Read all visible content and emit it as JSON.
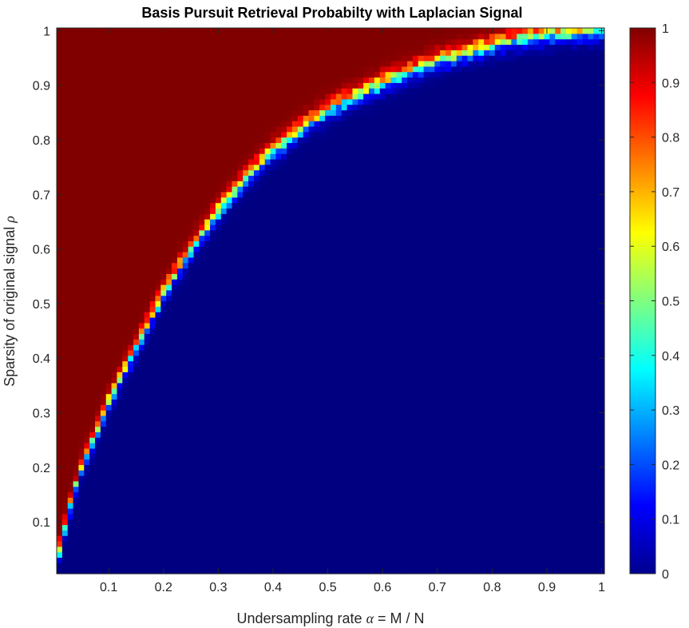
{
  "chart_data": {
    "type": "heatmap",
    "title": "Basis Pursuit Retrieval Probabilty with Laplacian Signal",
    "xlabel_text": "Undersampling rate ",
    "xlabel_symbol": "α",
    "xlabel_suffix": " = M / N",
    "ylabel_text": "Sparsity of original signal ",
    "ylabel_symbol": "ρ",
    "xlim": [
      0.005,
      1.005
    ],
    "ylim": [
      0.005,
      1.005
    ],
    "x_ticks": [
      0.1,
      0.2,
      0.3,
      0.4,
      0.5,
      0.6,
      0.7,
      0.8,
      0.9,
      1
    ],
    "x_tick_labels": [
      "0.1",
      "0.2",
      "0.3",
      "0.4",
      "0.5",
      "0.6",
      "0.7",
      "0.8",
      "0.9",
      "1"
    ],
    "y_ticks": [
      0.1,
      0.2,
      0.3,
      0.4,
      0.5,
      0.6,
      0.7,
      0.8,
      0.9,
      1
    ],
    "y_tick_labels": [
      "0.1",
      "0.2",
      "0.3",
      "0.4",
      "0.5",
      "0.6",
      "0.7",
      "0.8",
      "0.9",
      "1"
    ],
    "grid": false,
    "colormap": "jet",
    "color_range": [
      0,
      1
    ],
    "colorbar_ticks": [
      0,
      0.1,
      0.2,
      0.3,
      0.4,
      0.5,
      0.6,
      0.7,
      0.8,
      0.9,
      1
    ],
    "colorbar_tick_labels": [
      "0",
      "0.1",
      "0.2",
      "0.3",
      "0.4",
      "0.5",
      "0.6",
      "0.7",
      "0.8",
      "0.9",
      "1"
    ],
    "grid_resolution": [
      100,
      100
    ],
    "region_high_value": 1,
    "region_low_value": 0,
    "transition_curve": {
      "alpha": [
        0.01,
        0.02,
        0.03,
        0.05,
        0.08,
        0.1,
        0.15,
        0.2,
        0.25,
        0.3,
        0.35,
        0.4,
        0.45,
        0.5,
        0.55,
        0.6,
        0.65,
        0.7,
        0.75,
        0.8,
        0.85,
        0.9,
        0.95,
        1.0
      ],
      "rho": [
        0.05,
        0.09,
        0.13,
        0.2,
        0.27,
        0.32,
        0.42,
        0.52,
        0.6,
        0.67,
        0.73,
        0.78,
        0.82,
        0.855,
        0.88,
        0.905,
        0.925,
        0.945,
        0.96,
        0.975,
        0.985,
        0.993,
        0.998,
        1.0
      ],
      "width": 0.02
    }
  }
}
